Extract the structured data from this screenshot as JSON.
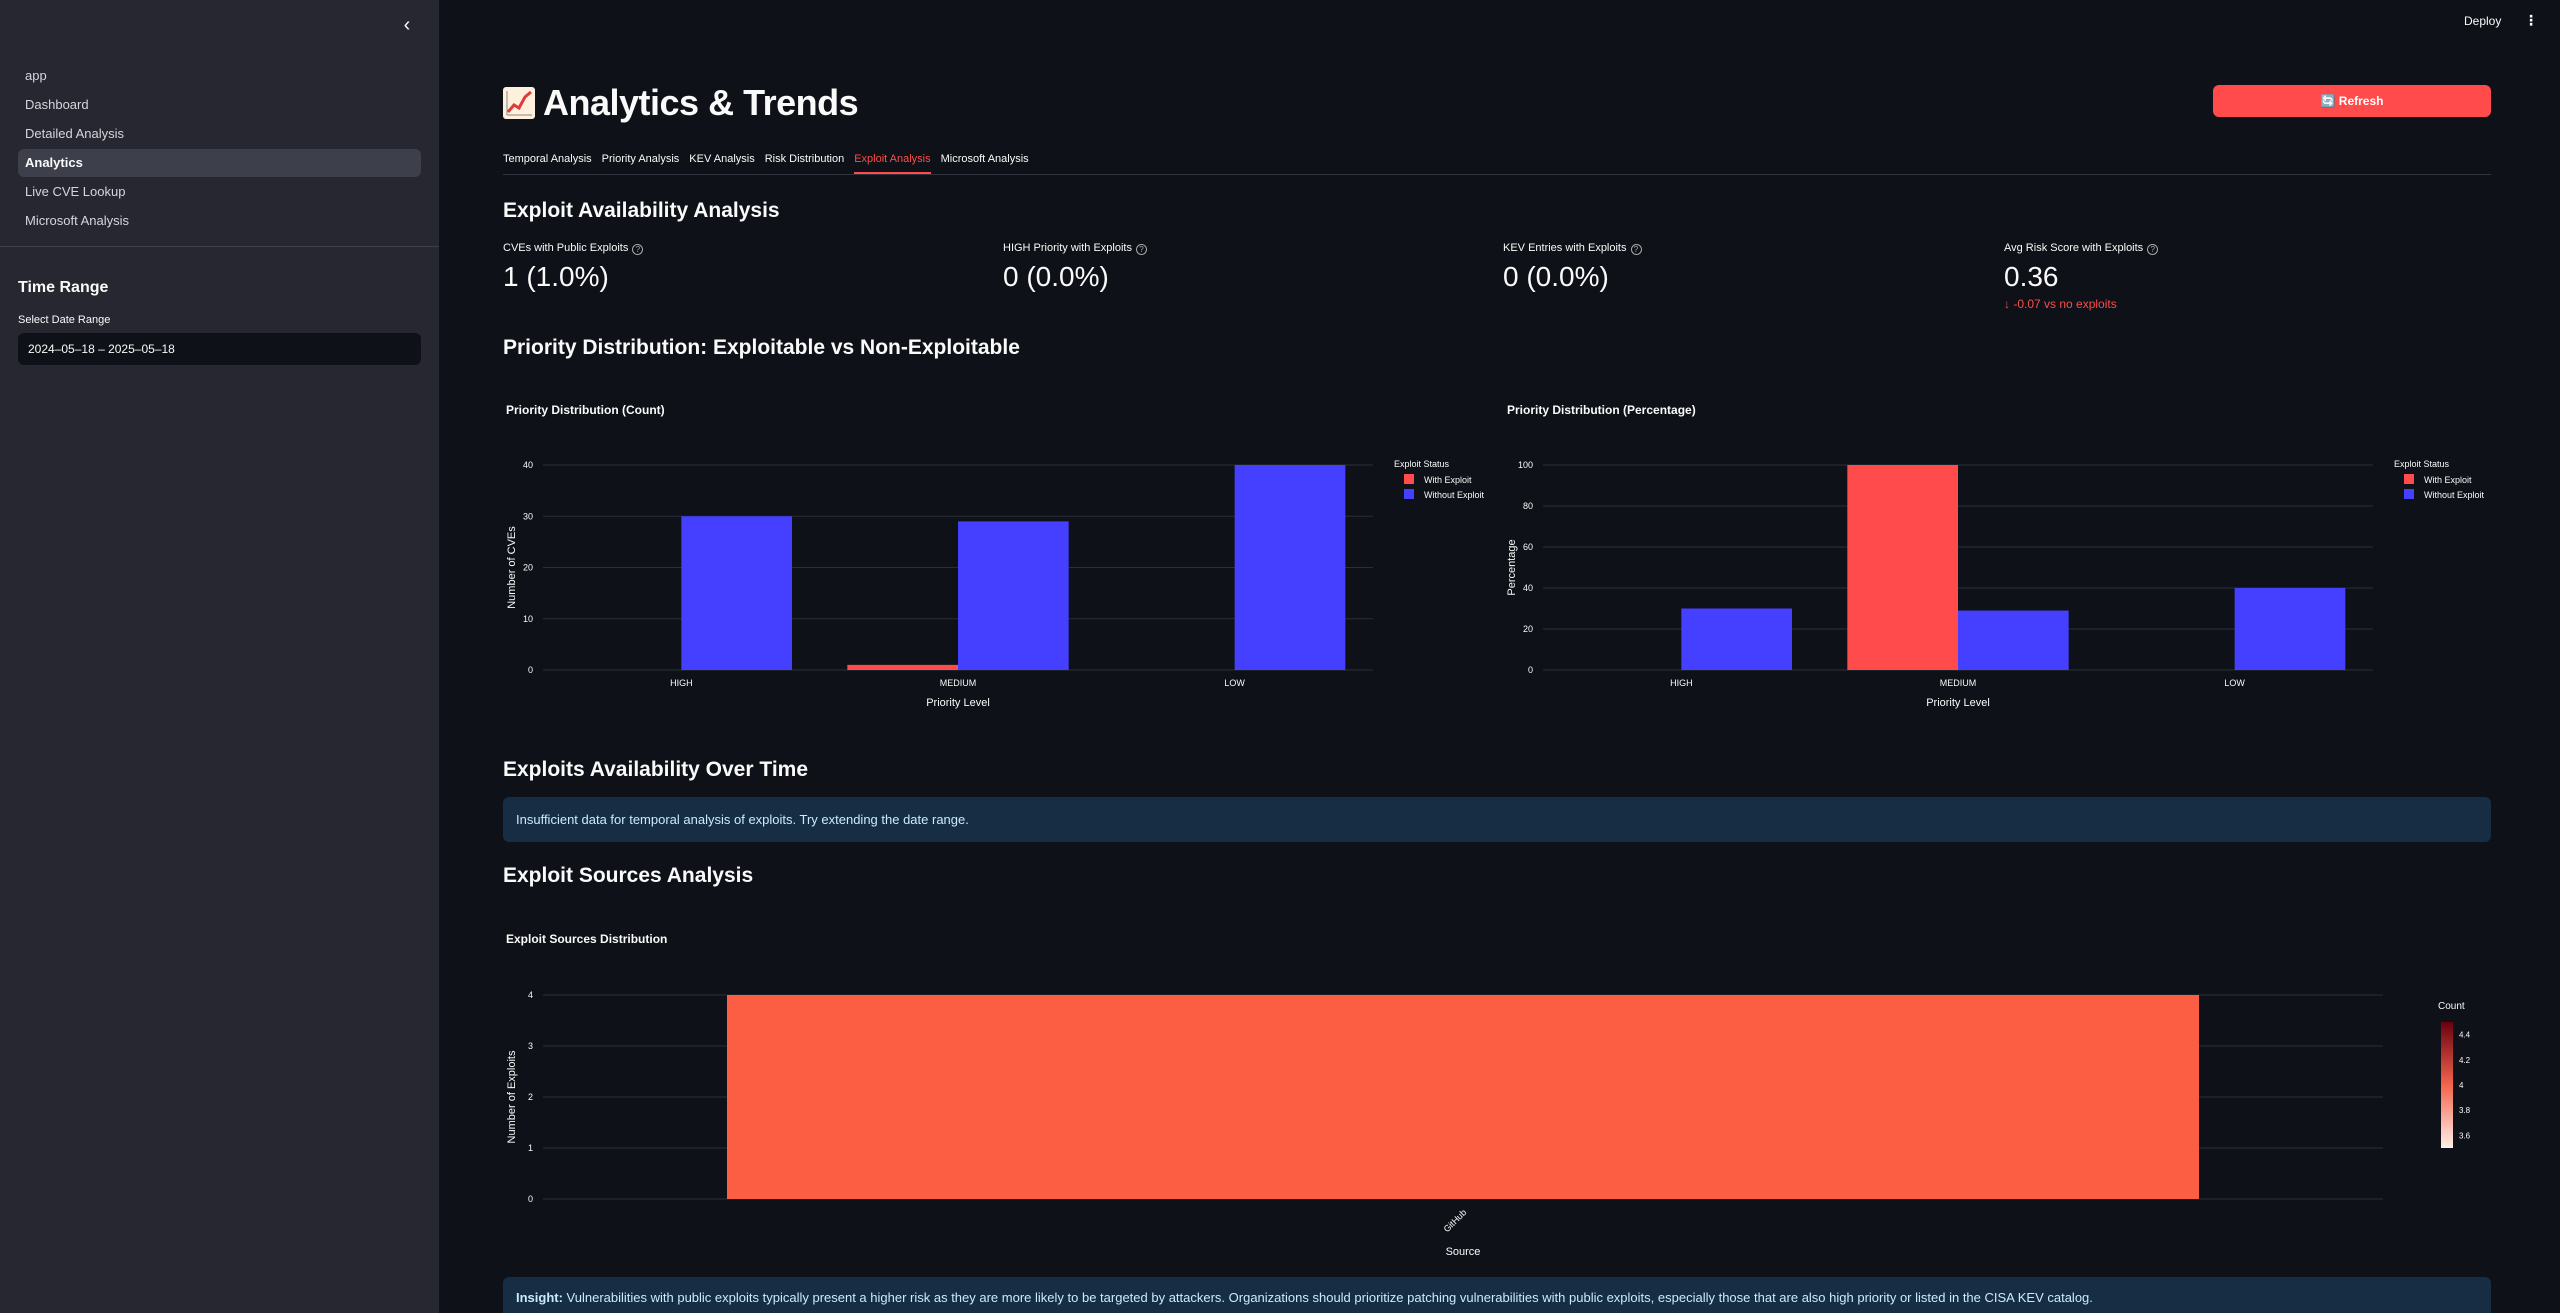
{
  "sidebar": {
    "items": [
      {
        "label": "app"
      },
      {
        "label": "Dashboard"
      },
      {
        "label": "Detailed Analysis"
      },
      {
        "label": "Analytics"
      },
      {
        "label": "Live CVE Lookup"
      },
      {
        "label": "Microsoft Analysis"
      }
    ],
    "time_range_heading": "Time Range",
    "date_label": "Select Date Range",
    "date_value": "2024–05–18 – 2025–05–18"
  },
  "header": {
    "deploy_label": "Deploy",
    "menu_icon": "kebab-menu-icon"
  },
  "page": {
    "title": "Analytics & Trends",
    "title_icon": "chart-increasing-icon",
    "refresh_label": "🔄 Refresh",
    "tabs": [
      {
        "label": "Temporal Analysis"
      },
      {
        "label": "Priority Analysis"
      },
      {
        "label": "KEV Analysis"
      },
      {
        "label": "Risk Distribution"
      },
      {
        "label": "Exploit Analysis"
      },
      {
        "label": "Microsoft Analysis"
      }
    ],
    "active_tab": "Exploit Analysis"
  },
  "exploit_section": {
    "heading": "Exploit Availability Analysis",
    "metrics": [
      {
        "label": "CVEs with Public Exploits",
        "value": "1 (1.0%)"
      },
      {
        "label": "HIGH Priority with Exploits",
        "value": "0 (0.0%)"
      },
      {
        "label": "KEV Entries with Exploits",
        "value": "0 (0.0%)"
      },
      {
        "label": "Avg Risk Score with Exploits",
        "value": "0.36",
        "delta": "-0.07 vs no exploits"
      }
    ]
  },
  "priority_section": {
    "heading": "Priority Distribution: Exploitable vs Non-Exploitable"
  },
  "time_section": {
    "heading": "Exploits Availability Over Time",
    "info": "Insufficient data for temporal analysis of exploits. Try extending the date range."
  },
  "sources_section": {
    "heading": "Exploit Sources Analysis"
  },
  "insight": {
    "bold": "Insight:",
    "text": " Vulnerabilities with public exploits typically present a higher risk as they are more likely to be targeted by attackers. Organizations should prioritize patching vulnerabilities with public exploits, especially those that are also high priority or listed in the CISA KEV catalog."
  },
  "colors": {
    "with_exploit": "#ff4b4b",
    "without_exploit": "#453fff",
    "sources_bar": "#fb5e42",
    "accent": "#ff4b4b"
  },
  "chart_data": [
    {
      "type": "bar",
      "title": "Priority Distribution (Count)",
      "categories": [
        "HIGH",
        "MEDIUM",
        "LOW"
      ],
      "series": [
        {
          "name": "With Exploit",
          "values": [
            0,
            1,
            0
          ]
        },
        {
          "name": "Without Exploit",
          "values": [
            30,
            29,
            40
          ]
        }
      ],
      "xlabel": "Priority Level",
      "ylabel": "Number of CVEs",
      "ylim": [
        0,
        40
      ],
      "yticks": [
        0,
        10,
        20,
        30,
        40
      ],
      "legend_title": "Exploit Status",
      "legend_position": "top-right",
      "grid": true
    },
    {
      "type": "bar",
      "title": "Priority Distribution (Percentage)",
      "categories": [
        "HIGH",
        "MEDIUM",
        "LOW"
      ],
      "series": [
        {
          "name": "With Exploit",
          "values": [
            0,
            100,
            0
          ]
        },
        {
          "name": "Without Exploit",
          "values": [
            30,
            29,
            40
          ]
        }
      ],
      "xlabel": "Priority Level",
      "ylabel": "Percentage",
      "ylim": [
        0,
        100
      ],
      "yticks": [
        0,
        20,
        40,
        60,
        80,
        100
      ],
      "legend_title": "Exploit Status",
      "legend_position": "top-right",
      "grid": true
    },
    {
      "type": "bar",
      "title": "Exploit Sources Distribution",
      "categories": [
        "GitHub"
      ],
      "values": [
        4
      ],
      "xlabel": "Source",
      "ylabel": "Number of Exploits",
      "ylim": [
        0,
        4
      ],
      "yticks": [
        0,
        1,
        2,
        3,
        4
      ],
      "colorbar_title": "Count",
      "colorbar_ticks": [
        3.6,
        3.8,
        4,
        4.2,
        4.4
      ],
      "grid": true
    }
  ]
}
